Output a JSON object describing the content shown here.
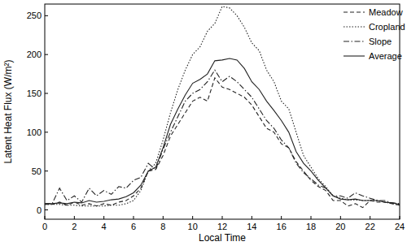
{
  "chart_data": {
    "type": "line",
    "x_label": "Local Time",
    "y_label": "Latent Heat Flux (W/m²)",
    "x": [
      0,
      0.5,
      1,
      1.5,
      2,
      2.5,
      3,
      3.5,
      4,
      4.5,
      5,
      5.5,
      6,
      6.5,
      7,
      7.5,
      8,
      8.5,
      9,
      9.5,
      10,
      10.5,
      11,
      11.5,
      12,
      12.5,
      13,
      13.5,
      14,
      14.5,
      15,
      15.5,
      16,
      16.5,
      17,
      17.5,
      18,
      18.5,
      19,
      19.5,
      20,
      20.5,
      21,
      21.5,
      22,
      22.5,
      23,
      23.5,
      24
    ],
    "xlim": [
      0,
      24
    ],
    "xticks": [
      0,
      2,
      4,
      6,
      8,
      10,
      12,
      14,
      16,
      18,
      20,
      22,
      24
    ],
    "ylim": [
      -12,
      265
    ],
    "yticks": [
      0,
      50,
      100,
      150,
      200,
      250
    ],
    "grid": false,
    "legend": "upper-right",
    "series": [
      {
        "name": "Meadow",
        "color": "#222222",
        "line_style": "dashed",
        "values": [
          7,
          7,
          10,
          6,
          10,
          6,
          8,
          5,
          8,
          6,
          10,
          12,
          18,
          28,
          50,
          52,
          70,
          95,
          110,
          125,
          140,
          145,
          140,
          170,
          158,
          155,
          150,
          145,
          135,
          120,
          105,
          100,
          85,
          80,
          62,
          50,
          38,
          30,
          25,
          12,
          12,
          5,
          8,
          3,
          12,
          10,
          10,
          8,
          6
        ]
      },
      {
        "name": "Cropland",
        "color": "#222222",
        "line_style": "dotted",
        "values": [
          7,
          7,
          7,
          6,
          6,
          5,
          5,
          5,
          5,
          6,
          6,
          8,
          12,
          25,
          50,
          60,
          90,
          125,
          155,
          180,
          200,
          210,
          230,
          240,
          262,
          260,
          250,
          235,
          215,
          205,
          180,
          165,
          140,
          130,
          100,
          70,
          55,
          40,
          30,
          18,
          15,
          13,
          13,
          12,
          12,
          12,
          10,
          8,
          6
        ]
      },
      {
        "name": "Slope",
        "color": "#222222",
        "line_style": "dashdot",
        "values": [
          8,
          8,
          28,
          12,
          18,
          10,
          28,
          18,
          25,
          20,
          30,
          28,
          38,
          42,
          60,
          52,
          78,
          100,
          120,
          140,
          150,
          155,
          165,
          180,
          165,
          172,
          165,
          155,
          145,
          130,
          115,
          105,
          90,
          80,
          60,
          48,
          40,
          32,
          28,
          18,
          18,
          15,
          22,
          18,
          15,
          12,
          12,
          9,
          8
        ]
      },
      {
        "name": "Average",
        "color": "#222222",
        "line_style": "solid",
        "values": [
          8,
          8,
          9,
          8,
          10,
          9,
          12,
          10,
          11,
          13,
          14,
          17,
          22,
          32,
          50,
          55,
          80,
          110,
          130,
          148,
          163,
          168,
          175,
          192,
          193,
          195,
          193,
          182,
          165,
          155,
          140,
          128,
          115,
          100,
          75,
          60,
          50,
          38,
          28,
          18,
          14,
          13,
          14,
          12,
          12,
          12,
          10,
          9,
          7
        ]
      }
    ]
  }
}
